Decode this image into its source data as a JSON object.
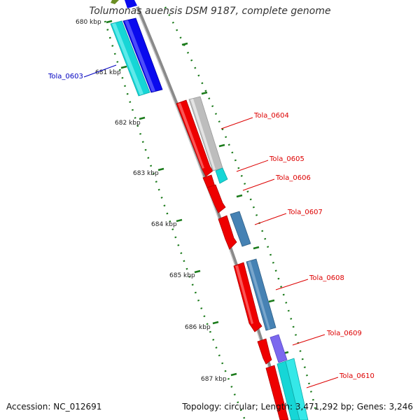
{
  "title": "Tolumonas auensis DSM 9187, complete genome",
  "accession": "Accession: NC_012691",
  "summary": "Topology: circular; Length: 3,471,292 bp; Genes: 3,246",
  "ruler_labels": [
    "680 kbp",
    "681 kbp",
    "682 kbp",
    "683 kbp",
    "684 kbp",
    "685 kbp",
    "686 kbp",
    "687 kbp"
  ],
  "gene_labels": [
    {
      "name": "Tola_0603",
      "color": "#0000c0"
    },
    {
      "name": "Tola_0604",
      "color": "#dd0000"
    },
    {
      "name": "Tola_0605",
      "color": "#dd0000"
    },
    {
      "name": "Tola_0606",
      "color": "#dd0000"
    },
    {
      "name": "Tola_0607",
      "color": "#dd0000"
    },
    {
      "name": "Tola_0608",
      "color": "#dd0000"
    },
    {
      "name": "Tola_0609",
      "color": "#dd0000"
    },
    {
      "name": "Tola_0610",
      "color": "#dd0000"
    }
  ],
  "colors": {
    "backbone": "#8a8a8a",
    "tick": "#1a7a1a",
    "forward_red": "#ee0000",
    "grey": "#bdbdbd",
    "cyan": "#16d6d6",
    "blue": "#0a0aee",
    "steelblue": "#4682b4",
    "slateblue": "#7b68ee",
    "olive": "#6b8e23"
  }
}
